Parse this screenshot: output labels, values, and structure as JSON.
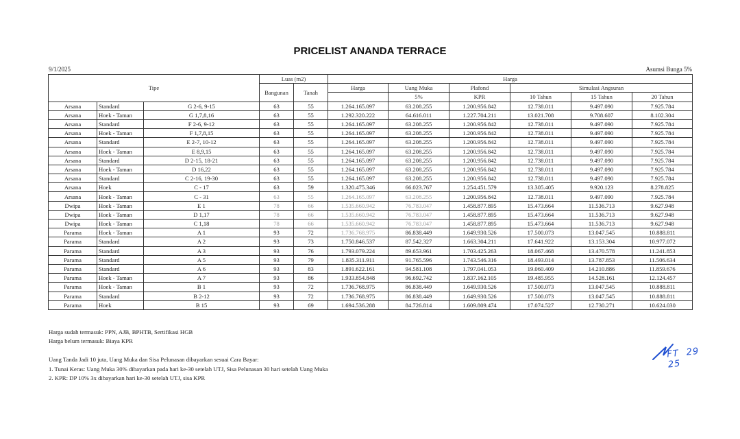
{
  "title": "PRICELIST ANANDA TERRACE",
  "date": "9/1/2025",
  "assumption": "Asumsi Bunga 5%",
  "headers": {
    "tipe": "Tipe",
    "luas": "Luas (m2)",
    "bangunan": "Bangunan",
    "tanah": "Tanah",
    "harga_group": "Harga",
    "harga": "Harga",
    "uang_muka": "Uang Muka",
    "uang_muka_pct": "5%",
    "plafond": "Plafond",
    "kpr": "KPR",
    "simulasi": "Simulasi Angsuran",
    "t10": "10 Tahun",
    "t15": "15 Tahun",
    "t20": "20 Tahun"
  },
  "rows": [
    [
      "Arsana",
      "Standard",
      "G 2-6, 9-15",
      "63",
      "55",
      "1.264.165.097",
      "63.208.255",
      "1.200.956.842",
      "12.738.011",
      "9.497.090",
      "7.925.784"
    ],
    [
      "Arsana",
      "Hoek - Taman",
      "G 1,7,8,16",
      "63",
      "55",
      "1.292.320.222",
      "64.616.011",
      "1.227.704.211",
      "13.021.708",
      "9.708.607",
      "8.102.304"
    ],
    [
      "Arsana",
      "Standard",
      "F 2-6, 9-12",
      "63",
      "55",
      "1.264.165.097",
      "63.208.255",
      "1.200.956.842",
      "12.738.011",
      "9.497.090",
      "7.925.784"
    ],
    [
      "Arsana",
      "Hoek - Taman",
      "F 1,7,8,15",
      "63",
      "55",
      "1.264.165.097",
      "63.208.255",
      "1.200.956.842",
      "12.738.011",
      "9.497.090",
      "7.925.784"
    ],
    [
      "Arsana",
      "Standard",
      "E 2-7, 10-12",
      "63",
      "55",
      "1.264.165.097",
      "63.208.255",
      "1.200.956.842",
      "12.738.011",
      "9.497.090",
      "7.925.784"
    ],
    [
      "Arsana",
      "Hoek - Taman",
      "E 8,9,15",
      "63",
      "55",
      "1.264.165.097",
      "63.208.255",
      "1.200.956.842",
      "12.738.011",
      "9.497.090",
      "7.925.784"
    ],
    [
      "Arsana",
      "Standard",
      "D 2-15, 18-21",
      "63",
      "55",
      "1.264.165.097",
      "63.208.255",
      "1.200.956.842",
      "12.738.011",
      "9.497.090",
      "7.925.784"
    ],
    [
      "Arsana",
      "Hoek - Taman",
      "D 16,22",
      "63",
      "55",
      "1.264.165.097",
      "63.208.255",
      "1.200.956.842",
      "12.738.011",
      "9.497.090",
      "7.925.784"
    ],
    [
      "Arsana",
      "Standard",
      "C 2-16, 19-30",
      "63",
      "55",
      "1.264.165.097",
      "63.208.255",
      "1.200.956.842",
      "12.738.011",
      "9.497.090",
      "7.925.784"
    ],
    [
      "Arsana",
      "Hoek",
      "C - 17",
      "63",
      "59",
      "1.320.475.346",
      "66.023.767",
      "1.254.451.579",
      "13.305.405",
      "9.920.123",
      "8.278.825"
    ],
    [
      "Arsana",
      "Hoek - Taman",
      "C - 31",
      "63",
      "55",
      "1.264.165.097",
      "63.208.255",
      "1.200.956.842",
      "12.738.011",
      "9.497.090",
      "7.925.784"
    ],
    [
      "Dwipa",
      "Hoek - Taman",
      "E 1",
      "78",
      "66",
      "1.535.660.942",
      "76.783.047",
      "1.458.877.895",
      "15.473.664",
      "11.536.713",
      "9.627.948"
    ],
    [
      "Dwipa",
      "Hoek - Taman",
      "D 1,17",
      "78",
      "66",
      "1.535.660.942",
      "76.783.047",
      "1.458.877.895",
      "15.473.664",
      "11.536.713",
      "9.627.948"
    ],
    [
      "Dwipa",
      "Hoek - Taman",
      "C 1,18",
      "78",
      "66",
      "1.535.660.942",
      "76.783.047",
      "1.458.877.895",
      "15.473.664",
      "11.536.713",
      "9.627.948"
    ],
    [
      "Parama",
      "Hoek - Taman",
      "A 1",
      "93",
      "72",
      "1.736.768.975",
      "86.838.449",
      "1.649.930.526",
      "17.500.073",
      "13.047.545",
      "10.888.811"
    ],
    [
      "Parama",
      "Standard",
      "A 2",
      "93",
      "73",
      "1.750.846.537",
      "87.542.327",
      "1.663.304.211",
      "17.641.922",
      "13.153.304",
      "10.977.072"
    ],
    [
      "Parama",
      "Standard",
      "A 3",
      "93",
      "76",
      "1.793.079.224",
      "89.653.961",
      "1.703.425.263",
      "18.067.468",
      "13.470.578",
      "11.241.853"
    ],
    [
      "Parama",
      "Standard",
      "A 5",
      "93",
      "79",
      "1.835.311.911",
      "91.765.596",
      "1.743.546.316",
      "18.493.014",
      "13.787.853",
      "11.506.634"
    ],
    [
      "Parama",
      "Standard",
      "A 6",
      "93",
      "83",
      "1.891.622.161",
      "94.581.108",
      "1.797.041.053",
      "19.060.409",
      "14.210.886",
      "11.859.676"
    ],
    [
      "Parama",
      "Hoek - Taman",
      "A 7",
      "93",
      "86",
      "1.933.854.848",
      "96.692.742",
      "1.837.162.105",
      "19.485.955",
      "14.528.161",
      "12.124.457"
    ],
    [
      "Parama",
      "Hoek - Taman",
      "B 1",
      "93",
      "72",
      "1.736.768.975",
      "86.838.449",
      "1.649.930.526",
      "17.500.073",
      "13.047.545",
      "10.888.811"
    ],
    [
      "Parama",
      "Standard",
      "B 2-12",
      "93",
      "72",
      "1.736.768.975",
      "86.838.449",
      "1.649.930.526",
      "17.500.073",
      "13.047.545",
      "10.888.811"
    ],
    [
      "Parama",
      "Hoek",
      "B 15",
      "93",
      "69",
      "1.694.536.288",
      "84.726.814",
      "1.609.809.474",
      "17.074.527",
      "12.730.271",
      "10.624.030"
    ]
  ],
  "notes": {
    "includes": "Harga sudah termasuk: PPN, AJB, BPHTB, Sertifikasi HGB",
    "excludes": "Harga belum termasuk: Biaya KPR",
    "payment_intro": "Uang Tanda Jadi 10 juta, Uang Muka dan Sisa Pelunasan dibayarkan sesuai Cara Bayar:",
    "payment_1": "1. Tunai Keras: Uang Muka 30% dibayarkan pada hari ke-30 setelah UTJ, Sisa Pelunasan 30 hari setelah Uang Muka",
    "payment_2": "2. KPR: DP 10% 3x dibayarkan hari ke-30 setelah UTJ, sisa KPR"
  },
  "signature": {
    "text": "FT 29 25",
    "color": "#1f4fd1"
  }
}
